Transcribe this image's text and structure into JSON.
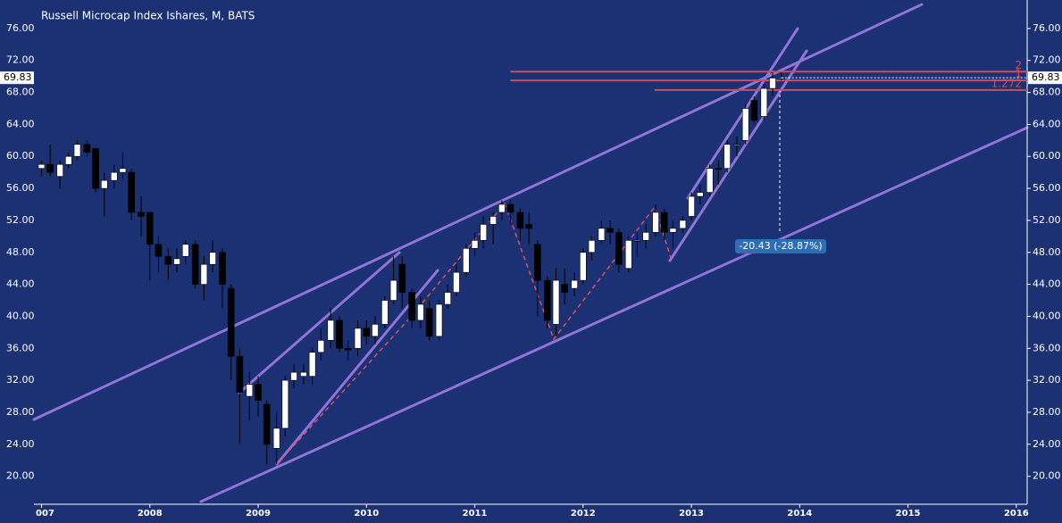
{
  "chart_data": {
    "type": "candlestick",
    "title": "Russell Microcap Index Ishares, M, BATS",
    "x": [
      2007,
      2007.08,
      2007.17,
      2007.25,
      2007.33,
      2007.42,
      2007.5,
      2007.58,
      2007.67,
      2007.75,
      2007.83,
      2007.92,
      2008,
      2008.08,
      2008.17,
      2008.25,
      2008.33,
      2008.42,
      2008.5,
      2008.58,
      2008.67,
      2008.75,
      2008.83,
      2008.92,
      2009,
      2009.08,
      2009.17,
      2009.25,
      2009.33,
      2009.42,
      2009.5,
      2009.58,
      2009.67,
      2009.75,
      2009.83,
      2009.92,
      2010,
      2010.08,
      2010.17,
      2010.25,
      2010.33,
      2010.42,
      2010.5,
      2010.58,
      2010.67,
      2010.75,
      2010.83,
      2010.92,
      2011,
      2011.08,
      2011.17,
      2011.25,
      2011.33,
      2011.42,
      2011.5,
      2011.58,
      2011.67,
      2011.75,
      2011.83,
      2011.92,
      2012,
      2012.08,
      2012.17,
      2012.25,
      2012.33,
      2012.42,
      2012.5,
      2012.58,
      2012.67,
      2012.75,
      2012.83,
      2012.92,
      2013,
      2013.08,
      2013.17,
      2013.25,
      2013.33,
      2013.42,
      2013.5,
      2013.58,
      2013.67,
      2013.75,
      2013.83
    ],
    "open": [
      58.5,
      59,
      57.5,
      59,
      60,
      61.5,
      61,
      56,
      57,
      58,
      58,
      53,
      53,
      49,
      47.5,
      46.5,
      47.5,
      49,
      44,
      46.5,
      48,
      43.5,
      35,
      30,
      31.5,
      29,
      23.5,
      26,
      32,
      32.5,
      32.5,
      35.5,
      37,
      39.5,
      36,
      36,
      38.5,
      37.5,
      39,
      42,
      46.5,
      43,
      39.5,
      41,
      37.5,
      41.5,
      43,
      45.5,
      48.5,
      49.5,
      51.5,
      53,
      54,
      53,
      51.5,
      49,
      44.5,
      39,
      44,
      43.5,
      44.5,
      48,
      49.5,
      51,
      50.5,
      46,
      49.5,
      49.5,
      50.5,
      53,
      50.5,
      51,
      52.5,
      55,
      55.5,
      58.5,
      58.5,
      61.5,
      62,
      67,
      65,
      68.5,
      69.8
    ],
    "high": [
      59.5,
      61.5,
      59.5,
      60.5,
      62,
      62,
      61,
      58,
      59,
      60.5,
      58.5,
      55,
      53,
      50,
      48.5,
      48.5,
      49.5,
      49.5,
      47.5,
      49.5,
      48.5,
      44,
      36,
      33,
      32.5,
      29.5,
      28,
      32.5,
      34,
      34,
      36,
      38.5,
      41,
      40,
      37,
      39.5,
      39.5,
      40,
      42.5,
      47.5,
      47.5,
      43.5,
      42.5,
      42,
      42,
      44,
      46.5,
      49,
      50.5,
      52.5,
      53,
      54.5,
      54.5,
      53.5,
      53,
      49.5,
      45,
      46,
      46,
      45.5,
      48.5,
      50,
      52,
      52,
      51,
      50,
      50.5,
      51.5,
      54,
      53.5,
      52,
      52.5,
      55.5,
      56.5,
      59,
      59.5,
      62,
      62.5,
      66.5,
      67.5,
      69,
      70.5,
      70.5
    ],
    "low": [
      57.5,
      57.5,
      56,
      58.5,
      59.5,
      60,
      55.5,
      52.5,
      56,
      57,
      52,
      50,
      44.5,
      45.5,
      44.5,
      45.5,
      46.5,
      43.5,
      42,
      45.5,
      41,
      32,
      24,
      27,
      27.5,
      21.5,
      21.5,
      25,
      31,
      31.5,
      31.5,
      34.5,
      36,
      35.5,
      34.5,
      35,
      36.5,
      36.5,
      38.5,
      41.5,
      41,
      38.5,
      38.5,
      37,
      37,
      41,
      42.5,
      45,
      47.5,
      48.5,
      49,
      52,
      51.5,
      49.5,
      49,
      40,
      38.5,
      37.5,
      41.5,
      42.5,
      44,
      47,
      49,
      49,
      45.5,
      45.5,
      47.5,
      48.5,
      50,
      49.5,
      48.5,
      50.5,
      52,
      54,
      55,
      56.5,
      58,
      60,
      61.5,
      64,
      64.5,
      67.5,
      69.5
    ],
    "close": [
      59,
      58,
      59,
      60,
      61.5,
      60.5,
      56,
      57,
      58,
      58.5,
      53,
      52.5,
      49,
      47.5,
      46.5,
      47.2,
      49,
      44,
      46.5,
      48,
      44,
      35,
      30.5,
      31.5,
      29.5,
      24,
      26,
      32,
      33,
      33,
      35.5,
      37,
      39.5,
      36,
      35.8,
      38.5,
      37.5,
      39,
      42,
      44.5,
      43,
      39.5,
      41.5,
      37.5,
      41.5,
      43,
      45.5,
      48.5,
      49.5,
      51.5,
      52.5,
      54,
      53,
      51,
      51,
      44.5,
      39.5,
      44.5,
      43,
      44.5,
      48,
      49.5,
      51,
      50.5,
      46.5,
      49.5,
      49.5,
      50.5,
      53,
      50.5,
      51,
      52,
      55,
      55.5,
      58.5,
      58.4,
      61.5,
      61.5,
      66,
      64.5,
      68.5,
      69.8,
      69.83
    ],
    "up_color": "#ffffff",
    "down_color": "#000000",
    "xlim": [
      2006.93,
      2016.1
    ],
    "xticks": [
      {
        "value": 2007,
        "label": "007"
      },
      2008,
      2009,
      2010,
      2011,
      2012,
      2013,
      2014,
      2015,
      2016
    ],
    "ylim": [
      16.5,
      79
    ],
    "yticks": [
      {
        "value": 20,
        "label": "20.00"
      },
      {
        "value": 24,
        "label": "24.00"
      },
      {
        "value": 28,
        "label": "28.00"
      },
      {
        "value": 32,
        "label": "32.00"
      },
      {
        "value": 36,
        "label": "36.00"
      },
      {
        "value": 40,
        "label": "40.00"
      },
      {
        "value": 44,
        "label": "44.00"
      },
      {
        "value": 48,
        "label": "48.00"
      },
      {
        "value": 52,
        "label": "52.00"
      },
      {
        "value": 56,
        "label": "56.00"
      },
      {
        "value": 60,
        "label": "60.00"
      },
      {
        "value": 64,
        "label": "64.00"
      },
      {
        "value": 68,
        "label": "68.00"
      },
      {
        "value": 72,
        "label": "72.00"
      },
      {
        "value": 76,
        "label": "76.00"
      }
    ],
    "last_price": 69.83,
    "levels": [
      {
        "label": "2",
        "value": 70.6,
        "x_start": 2011.33
      },
      {
        "label": "1",
        "value": 69.5,
        "x_start": 2011.33
      },
      {
        "label": "1.272",
        "value": 68.3,
        "x_start": 2012.66
      }
    ],
    "level_color": "#c8505a",
    "annotation": "-20.43 (-28.87%)"
  }
}
